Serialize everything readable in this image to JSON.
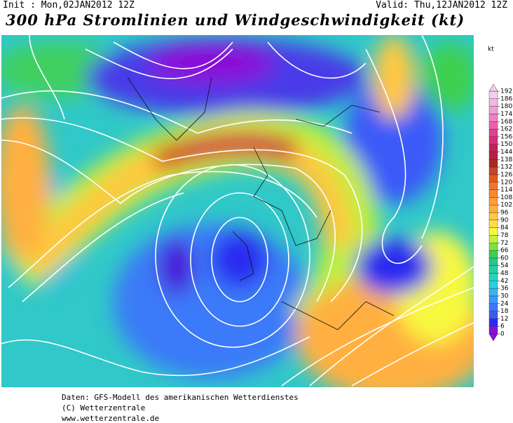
{
  "header": {
    "init": "Init : Mon,02JAN2012 12Z",
    "valid": "Valid: Thu,12JAN2012 12Z",
    "title": "300 hPa Stromlinien und Windgeschwindigkeit (kt)"
  },
  "colorbar": {
    "unit": "kt",
    "ticks": [
      0,
      6,
      12,
      18,
      24,
      30,
      36,
      42,
      48,
      54,
      60,
      66,
      72,
      78,
      84,
      90,
      96,
      102,
      108,
      114,
      120,
      126,
      132,
      138,
      144,
      150,
      156,
      162,
      168,
      174,
      180,
      186,
      192
    ],
    "colors": [
      "#8a10d8",
      "#2a2af0",
      "#3a5af8",
      "#3a7af8",
      "#3a98f8",
      "#38b4f0",
      "#30cce0",
      "#22d4c4",
      "#22d0a4",
      "#22c888",
      "#3cd050",
      "#80e040",
      "#c0f040",
      "#f8f840",
      "#ffe040",
      "#ffc840",
      "#ffb040",
      "#ff9c38",
      "#f88830",
      "#f07430",
      "#e05a20",
      "#c84422",
      "#a82a22",
      "#b02444",
      "#c82058",
      "#d83078",
      "#e04090",
      "#ec60b0",
      "#f080c4",
      "#f0a0d4",
      "#f2b8e4",
      "#f4d0f0"
    ]
  },
  "footer": {
    "line1": "Daten: GFS-Modell des amerikanischen Wetterdienstes",
    "line2": "(C) Wetterzentrale",
    "line3": "www.wetterzentrale.de"
  }
}
